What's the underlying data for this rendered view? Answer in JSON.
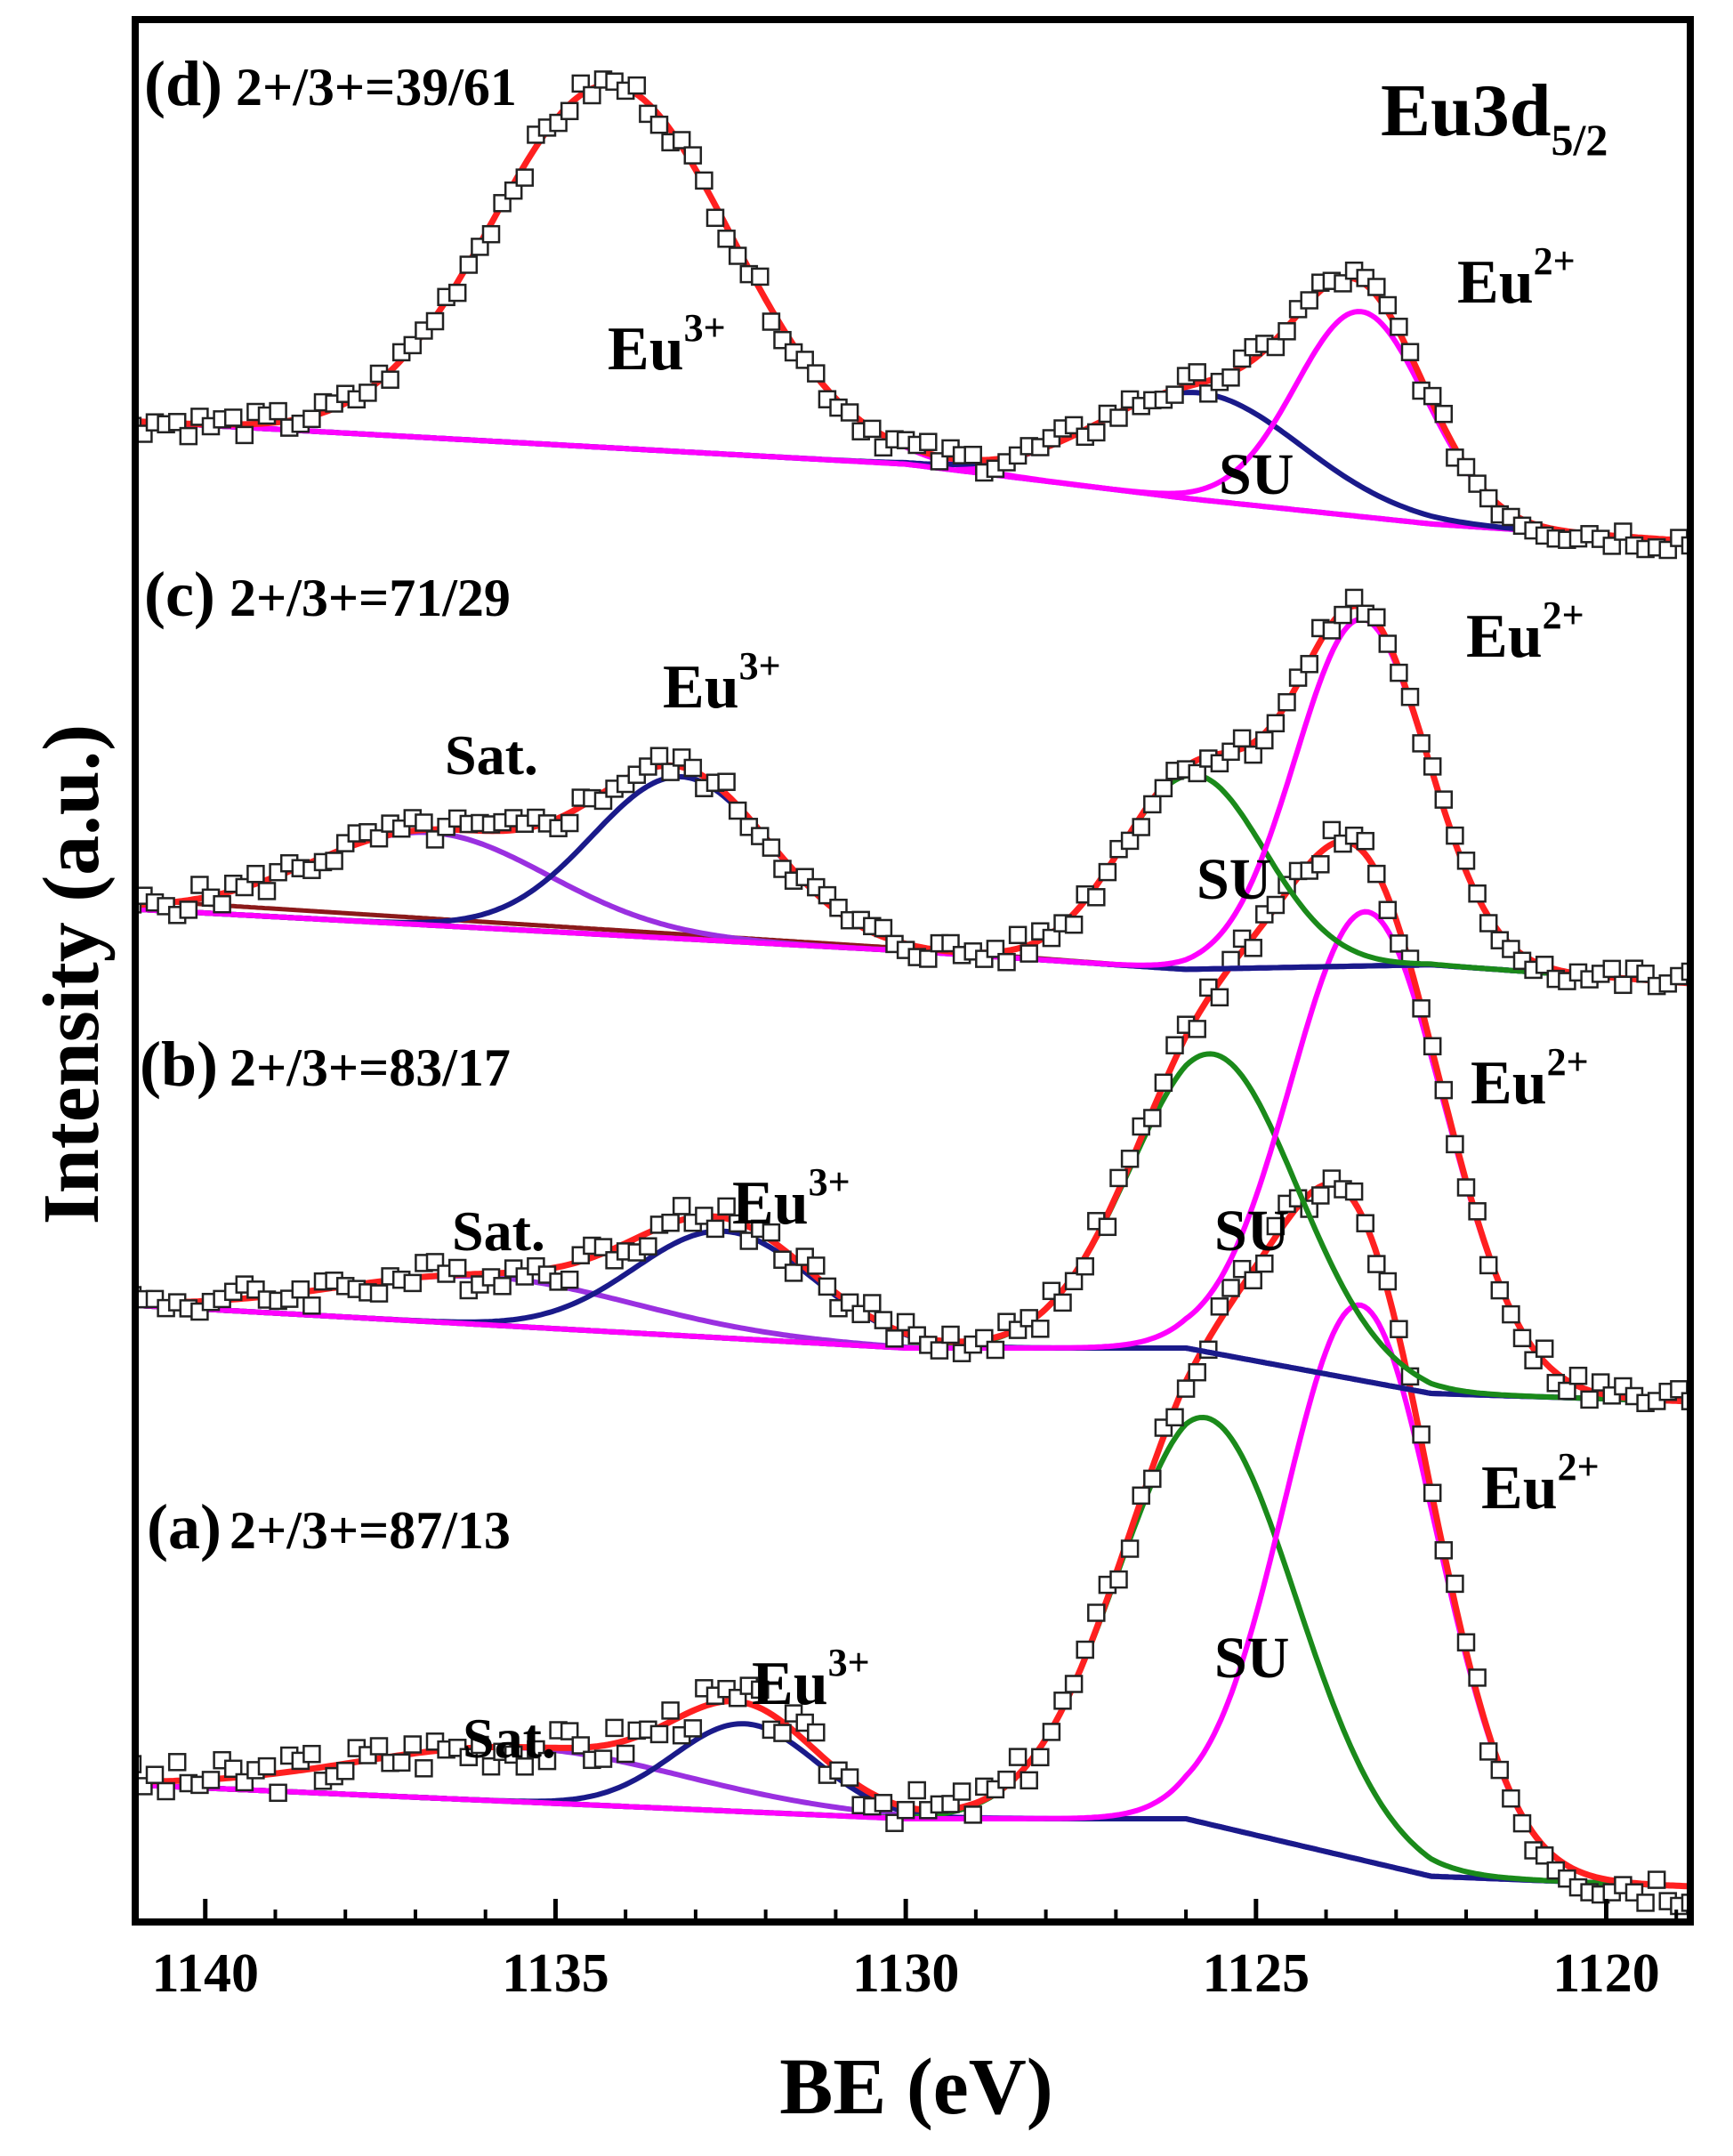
{
  "chart_data": {
    "type": "line",
    "title": "",
    "xlabel": "BE (eV)",
    "ylabel": "Intensity (a.u.)",
    "xlim": [
      1141,
      1118.8
    ],
    "x_ticks": [
      1140,
      1135,
      1130,
      1125,
      1120
    ],
    "x_tick_labels": [
      "1140",
      "1135",
      "1130",
      "1125",
      "1120"
    ],
    "core_level": {
      "main": "Eu3d",
      "sub": "5/2"
    },
    "colors": {
      "Eu2+": "#ff00ff",
      "SU": "#1a8a1a",
      "Eu3+ (a,b,c)": "#1a1a8a",
      "Sat.": "#9a30e0",
      "Background": "#2a78b8",
      "Background (c, extra)": "#8b1a1a",
      "Envelope": "#ff2020",
      "Raw data markers": "#222222"
    },
    "panels": [
      {
        "id": "a",
        "panel_label": "(a)",
        "ratio_text": "2+/3+=87/13",
        "peak_labels": {
          "sat": "Sat.",
          "eu3_base": "Eu",
          "eu3_sup": "3+",
          "su": "SU",
          "eu2_base": "Eu",
          "eu2_sup": "2+"
        },
        "baseline": {
          "x": [
            1141,
            1130,
            1126,
            1122.5,
            1118.8
          ],
          "y": [
            0.15,
            0.1,
            0.1,
            0.015,
            0.0
          ]
        },
        "components": [
          {
            "name": "Sat.",
            "center": 1135.5,
            "height": 0.08,
            "fwhm": 5.5
          },
          {
            "name": "Eu3+",
            "center": 1132.3,
            "height": 0.13,
            "fwhm": 2.4
          },
          {
            "name": "SU",
            "center": 1125.7,
            "height": 0.6,
            "fwhm": 3.0
          },
          {
            "name": "Eu2+",
            "center": 1123.5,
            "height": 0.82,
            "fwhm": 2.6
          }
        ]
      },
      {
        "id": "b",
        "panel_label": "(b)",
        "ratio_text": "2+/3+=83/17",
        "peak_labels": {
          "sat": "Sat.",
          "eu3_base": "Eu",
          "eu3_sup": "3+",
          "su": "SU",
          "eu2_base": "Eu",
          "eu2_sup": "2+"
        },
        "baseline": {
          "x": [
            1141,
            1130,
            1126,
            1122.5,
            1118.8
          ],
          "y": [
            0.18,
            0.1,
            0.1,
            0.015,
            0.0
          ]
        },
        "components": [
          {
            "name": "Sat.",
            "center": 1136.0,
            "height": 0.09,
            "fwhm": 5.0
          },
          {
            "name": "Eu3+",
            "center": 1132.6,
            "height": 0.2,
            "fwhm": 3.0
          },
          {
            "name": "SU",
            "center": 1125.6,
            "height": 0.56,
            "fwhm": 2.8
          },
          {
            "name": "Eu2+",
            "center": 1123.4,
            "height": 0.88,
            "fwhm": 2.6
          }
        ]
      },
      {
        "id": "c",
        "panel_label": "(c)",
        "ratio_text": "2+/3+=71/29",
        "peak_labels": {
          "sat": "Sat.",
          "eu3_base": "Eu",
          "eu3_sup": "3+",
          "su": "SU",
          "eu2_base": "Eu",
          "eu2_sup": "2+"
        },
        "baseline": {
          "x": [
            1141,
            1130,
            1126,
            1122.5,
            1118.8
          ],
          "y": [
            0.16,
            0.07,
            0.03,
            0.04,
            0.0
          ]
        },
        "components": [
          {
            "name": "Sat.",
            "center": 1136.8,
            "height": 0.2,
            "fwhm": 4.0
          },
          {
            "name": "Eu3+",
            "center": 1133.2,
            "height": 0.35,
            "fwhm": 3.0
          },
          {
            "name": "SU",
            "center": 1125.9,
            "height": 0.42,
            "fwhm": 2.4
          },
          {
            "name": "Eu2+",
            "center": 1123.5,
            "height": 0.75,
            "fwhm": 2.2
          }
        ]
      },
      {
        "id": "d",
        "panel_label": "(d)",
        "ratio_text": "2+/3+=39/61",
        "peak_labels": {
          "eu3_base": "Eu",
          "eu3_sup": "3+",
          "su": "SU",
          "eu2_base": "Eu",
          "eu2_sup": "2+"
        },
        "baseline": {
          "x": [
            1141,
            1130,
            1126,
            1122.5,
            1118.8
          ],
          "y": [
            0.28,
            0.18,
            0.1,
            0.04,
            0.0
          ]
        },
        "components": [
          {
            "name": "Eu3+",
            "center": 1134.2,
            "height": 0.85,
            "fwhm": 4.0
          },
          {
            "name": "SU",
            "center": 1125.8,
            "height": 0.25,
            "fwhm": 3.4
          },
          {
            "name": "Eu2+",
            "center": 1123.5,
            "height": 0.48,
            "fwhm": 2.2
          }
        ]
      }
    ]
  }
}
